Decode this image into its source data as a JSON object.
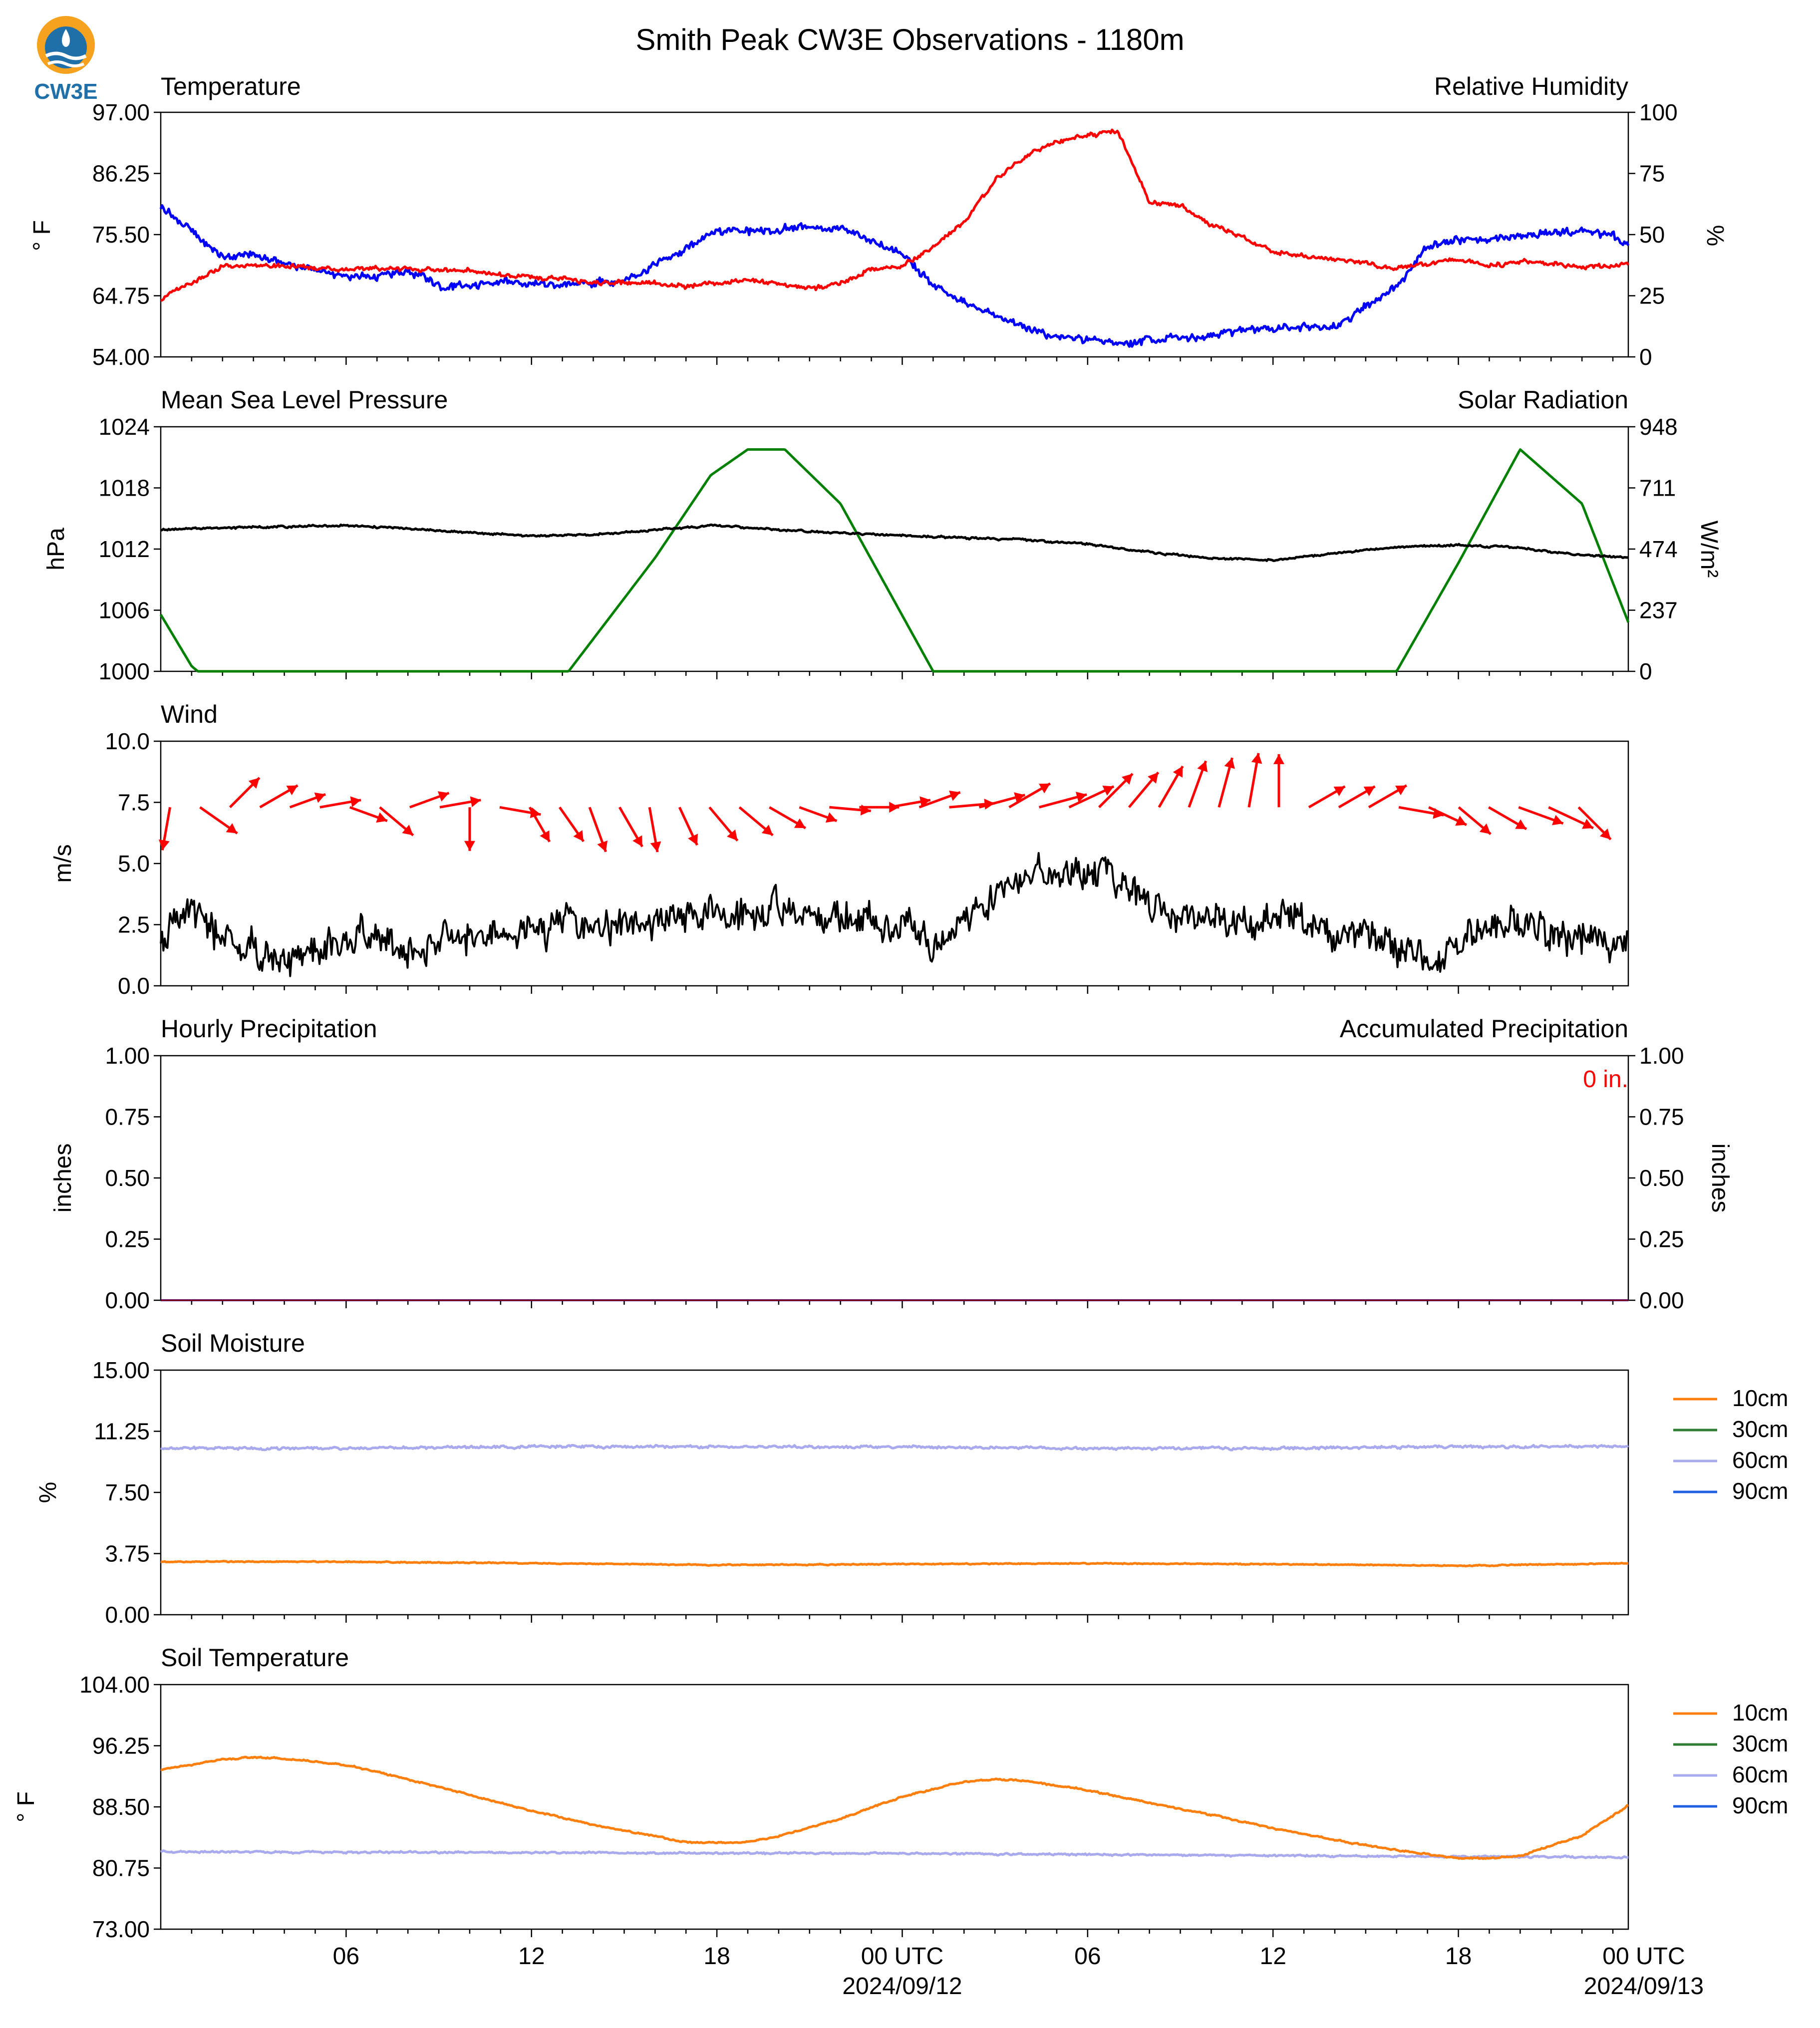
{
  "title": "Smith Peak CW3E Observations - 1180m",
  "logo_text": "CW3E",
  "x_axis": {
    "hours_shown": 47.5,
    "tick_labels": [
      "06",
      "12",
      "18",
      "00 UTC",
      "06",
      "12",
      "18",
      "00 UTC"
    ],
    "tick_hours": [
      6,
      12,
      18,
      24,
      30,
      36,
      42,
      48
    ],
    "date_labels": [
      {
        "text": "2024/09/12",
        "hour": 24
      },
      {
        "text": "2024/09/13",
        "hour": 48
      }
    ]
  },
  "colors": {
    "temperature": "#0000ff",
    "humidity": "#ff0000",
    "pressure": "#000000",
    "solar": "#008000",
    "wind_speed": "#000000",
    "wind_arrow": "#ff0000",
    "precip_hourly": "#0000ff",
    "precip_accum": "#ff0000",
    "d10": "#ff7f0e",
    "d30": "#2e7d32",
    "d60": "#a9a9ee",
    "d90": "#1f5fe0"
  },
  "legend": [
    {
      "label": "10cm",
      "color": "#ff7f0e"
    },
    {
      "label": "30cm",
      "color": "#2e7d32"
    },
    {
      "label": "60cm",
      "color": "#a9a9ee"
    },
    {
      "label": "90cm",
      "color": "#1f5fe0"
    }
  ],
  "panels": {
    "temp": {
      "title_left": "Temperature",
      "title_right": "Relative Humidity",
      "left_ticks": [
        "54.00",
        "64.75",
        "75.50",
        "86.25",
        "97.00"
      ],
      "left_label": "° F",
      "right_ticks": [
        "0",
        "25",
        "50",
        "75",
        "100"
      ],
      "right_label": "%"
    },
    "pres": {
      "title_left": "Mean Sea Level Pressure",
      "title_right": "Solar Radiation",
      "left_ticks": [
        "1000",
        "1006",
        "1012",
        "1018",
        "1024"
      ],
      "left_label": "hPa",
      "right_ticks": [
        "0",
        "237",
        "474",
        "711",
        "948"
      ],
      "right_label": "W/m²"
    },
    "wind": {
      "title_left": "Wind",
      "left_ticks": [
        "0.0",
        "2.5",
        "5.0",
        "7.5",
        "10.0"
      ],
      "left_label": "m/s"
    },
    "precip": {
      "title_left": "Hourly Precipitation",
      "title_right": "Accumulated Precipitation",
      "left_ticks": [
        "0.00",
        "0.25",
        "0.50",
        "0.75",
        "1.00"
      ],
      "left_label": "inches",
      "right_ticks": [
        "0.00",
        "0.25",
        "0.50",
        "0.75",
        "1.00"
      ],
      "right_label": "inches",
      "annotation": "0 in."
    },
    "soilm": {
      "title_left": "Soil Moisture",
      "left_ticks": [
        "0.00",
        "3.75",
        "7.50",
        "11.25",
        "15.00"
      ],
      "left_label": "%"
    },
    "soilt": {
      "title_left": "Soil Temperature",
      "left_ticks": [
        "73.00",
        "80.75",
        "88.50",
        "96.25",
        "104.00"
      ],
      "left_label": "° F"
    }
  },
  "chart_data": [
    {
      "type": "line",
      "title": "Temperature",
      "ylabel": "° F",
      "ylim": [
        54,
        97
      ],
      "x_unit": "hours from start",
      "series": [
        {
          "name": "Temperature",
          "x": [
            0,
            1,
            2,
            3,
            4,
            5,
            6,
            7,
            8,
            9,
            10,
            11,
            12,
            13,
            14,
            15,
            16,
            17,
            18,
            19,
            20,
            21,
            22,
            23,
            24,
            25,
            26,
            27,
            28,
            29,
            30,
            31,
            32,
            33,
            34,
            35,
            36,
            37,
            38,
            39,
            40,
            41,
            42,
            43,
            44,
            45,
            46,
            47,
            47.5
          ],
          "y": [
            80.5,
            76,
            71.5,
            72,
            70.5,
            69,
            68.5,
            68.2,
            69,
            66.5,
            66.2,
            67.5,
            67,
            66.5,
            67,
            67.5,
            70,
            73,
            76,
            76,
            76.5,
            77,
            76.5,
            74.5,
            72,
            66.5,
            63.5,
            61.5,
            59,
            57.5,
            57,
            56.2,
            57,
            57.3,
            58,
            58.7,
            59,
            59.3,
            59,
            63,
            66.5,
            73.5,
            74.5,
            74.5,
            75.5,
            76,
            76,
            75.5,
            73.5
          ]
        }
      ]
    },
    {
      "type": "line",
      "title": "Relative Humidity",
      "ylabel": "%",
      "ylim": [
        0,
        100
      ],
      "x_unit": "hours from start",
      "series": [
        {
          "name": "Relative Humidity",
          "x": [
            0,
            1,
            2,
            3,
            4,
            5,
            6,
            7,
            8,
            9,
            10,
            11,
            12,
            13,
            14,
            15,
            16,
            17,
            18,
            19,
            20,
            21,
            22,
            23,
            24,
            25,
            26,
            27,
            28,
            29,
            30,
            31,
            32,
            33,
            34,
            35,
            36,
            37,
            38,
            39,
            40,
            41,
            42,
            43,
            44,
            45,
            46,
            47,
            47.5
          ],
          "y": [
            24,
            30,
            37,
            37,
            37,
            36.5,
            36,
            36,
            36,
            35.5,
            35,
            33.5,
            32.5,
            31.5,
            30.5,
            30.5,
            30,
            29,
            30,
            31.5,
            30,
            28,
            30,
            36,
            37,
            45,
            55,
            72,
            82,
            88,
            91,
            92,
            63,
            62,
            54,
            49,
            43,
            41,
            40,
            38,
            36,
            38,
            40,
            37,
            39,
            38,
            37,
            37,
            38
          ]
        }
      ]
    },
    {
      "type": "line",
      "title": "Mean Sea Level Pressure",
      "ylabel": "hPa",
      "ylim": [
        1000,
        1024
      ],
      "x_unit": "hours from start",
      "series": [
        {
          "name": "Mean Sea Level Pressure",
          "x": [
            0,
            2,
            4,
            6,
            8,
            10,
            12,
            14,
            16,
            18,
            20,
            22,
            24,
            26,
            28,
            30,
            32,
            34,
            36,
            38,
            40,
            42,
            44,
            46,
            47.5
          ],
          "y": [
            1013.9,
            1014.1,
            1014.2,
            1014.3,
            1014.0,
            1013.6,
            1013.3,
            1013.4,
            1013.9,
            1014.3,
            1013.9,
            1013.6,
            1013.3,
            1013.1,
            1012.9,
            1012.5,
            1011.7,
            1011.1,
            1010.9,
            1011.6,
            1012.2,
            1012.4,
            1012.1,
            1011.4,
            1011.2
          ]
        }
      ]
    },
    {
      "type": "line",
      "title": "Solar Radiation",
      "ylabel": "W/m²",
      "ylim": [
        0,
        948
      ],
      "x_unit": "hours from start",
      "series": [
        {
          "name": "Solar Radiation",
          "x": [
            0,
            1,
            1.2,
            13.2,
            16,
            17.8,
            19,
            20.2,
            22,
            25,
            40,
            42,
            44,
            46,
            47.5
          ],
          "y": [
            220,
            20,
            0,
            0,
            440,
            760,
            860,
            860,
            650,
            0,
            0,
            420,
            860,
            650,
            190
          ]
        }
      ]
    },
    {
      "type": "line",
      "title": "Wind",
      "ylabel": "m/s",
      "ylim": [
        0,
        10
      ],
      "x_unit": "hours from start",
      "series": [
        {
          "name": "Wind Speed",
          "x": [
            0,
            1,
            2,
            3,
            4,
            5,
            6,
            7,
            8,
            9,
            10,
            11,
            12,
            13,
            14,
            15,
            16,
            17,
            18,
            19,
            20,
            21,
            22,
            23,
            24,
            25,
            26,
            27,
            28,
            29,
            30,
            31,
            32,
            33,
            34,
            35,
            36,
            37,
            38,
            39,
            40,
            41,
            42,
            43,
            44,
            45,
            46,
            47,
            47.5
          ],
          "y": [
            2.2,
            2.8,
            1.9,
            1.4,
            1.0,
            1.6,
            1.9,
            2.0,
            1.3,
            1.8,
            2.1,
            1.8,
            2.3,
            2.5,
            2.6,
            2.6,
            2.7,
            2.8,
            2.7,
            3.0,
            3.1,
            3.0,
            2.9,
            2.6,
            2.4,
            1.6,
            2.6,
            3.8,
            4.3,
            4.6,
            4.7,
            4.2,
            3.4,
            2.8,
            2.6,
            2.3,
            2.8,
            2.9,
            1.8,
            2.0,
            1.5,
            0.9,
            1.7,
            2.3,
            2.6,
            2.3,
            1.9,
            1.8,
            1.6
          ]
        }
      ]
    },
    {
      "type": "line",
      "title": "Hourly Precipitation",
      "ylabel": "inches",
      "ylim": [
        0,
        1
      ],
      "x_unit": "hours from start",
      "series": [
        {
          "name": "Hourly Precipitation",
          "x": [
            0,
            47.5
          ],
          "y": [
            0,
            0
          ]
        },
        {
          "name": "Accumulated Precipitation",
          "x": [
            0,
            47.5
          ],
          "y": [
            0,
            0
          ]
        }
      ]
    },
    {
      "type": "line",
      "title": "Soil Moisture",
      "ylabel": "%",
      "ylim": [
        0,
        15
      ],
      "x_unit": "hours from start",
      "series": [
        {
          "name": "60cm",
          "x": [
            0,
            6,
            12,
            18,
            24,
            30,
            36,
            42,
            47.5
          ],
          "y": [
            10.2,
            10.2,
            10.3,
            10.3,
            10.3,
            10.2,
            10.2,
            10.3,
            10.3
          ]
        },
        {
          "name": "10cm",
          "x": [
            0,
            6,
            12,
            18,
            24,
            30,
            36,
            42,
            47.5
          ],
          "y": [
            3.25,
            3.25,
            3.15,
            3.05,
            3.1,
            3.15,
            3.1,
            3.0,
            3.15
          ]
        }
      ]
    },
    {
      "type": "line",
      "title": "Soil Temperature",
      "ylabel": "° F",
      "ylim": [
        73,
        104
      ],
      "x_unit": "hours from start",
      "series": [
        {
          "name": "10cm",
          "x": [
            0,
            2,
            3,
            4,
            6,
            8,
            10,
            12,
            14,
            16,
            17,
            18,
            19,
            20,
            22,
            24,
            26,
            27,
            28,
            30,
            32,
            34,
            36,
            38,
            40,
            42,
            43,
            44,
            46,
            47.5
          ],
          "y": [
            93.2,
            94.5,
            94.8,
            94.6,
            93.8,
            92.0,
            90.0,
            88.0,
            86.2,
            84.8,
            84.0,
            84.0,
            84.0,
            84.8,
            87.0,
            89.8,
            91.7,
            92.0,
            91.8,
            90.6,
            89.0,
            87.5,
            85.8,
            84.3,
            83.0,
            82.0,
            82.0,
            82.3,
            84.8,
            88.7
          ]
        },
        {
          "name": "60cm",
          "x": [
            0,
            12,
            24,
            36,
            47.5
          ],
          "y": [
            82.8,
            82.7,
            82.6,
            82.3,
            82.1
          ]
        }
      ]
    }
  ]
}
